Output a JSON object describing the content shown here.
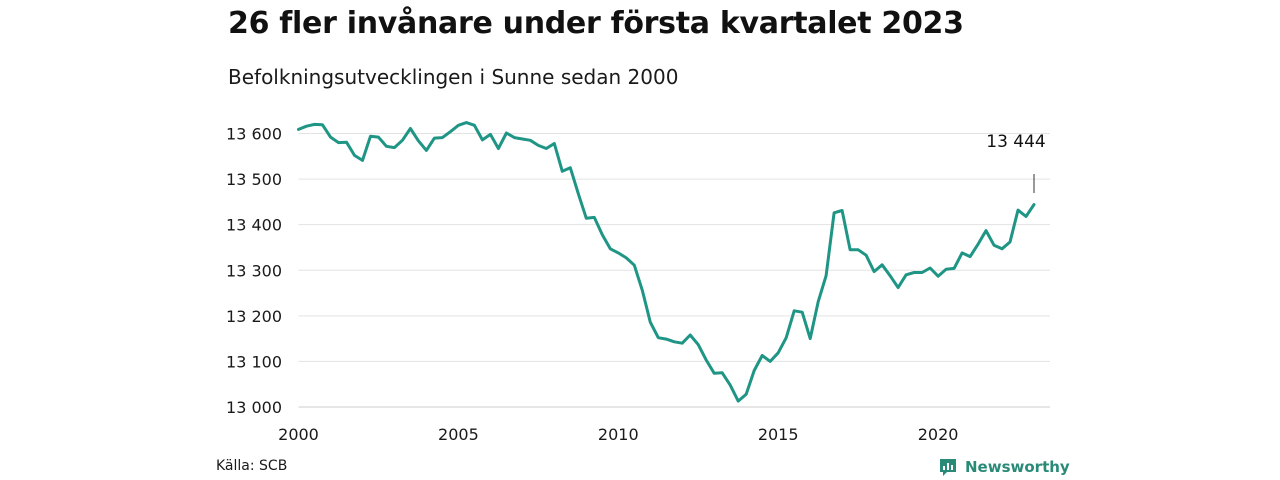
{
  "header": {
    "title": "26 fler invånare under första kvartalet 2023",
    "subtitle": "Befolkningsutvecklingen i Sunne sedan 2000"
  },
  "footer": {
    "source": "Källa: SCB",
    "brand": "Newsworthy"
  },
  "colors": {
    "line": "#1f9585",
    "grid": "#e3e3e3",
    "axis": "#cccccc",
    "brand": "#2a8a78"
  },
  "chart_data": {
    "type": "line",
    "title": "26 fler invånare under första kvartalet 2023",
    "subtitle": "Befolkningsutvecklingen i Sunne sedan 2000",
    "xlabel": "",
    "ylabel": "",
    "xlim": [
      2000,
      2023.5
    ],
    "ylim": [
      13000,
      13600
    ],
    "x_ticks": [
      2000,
      2005,
      2010,
      2015,
      2020
    ],
    "y_ticks": [
      13000,
      13100,
      13200,
      13300,
      13400,
      13500,
      13600
    ],
    "y_tick_labels": [
      "13 000",
      "13 100",
      "13 200",
      "13 300",
      "13 400",
      "13 500",
      "13 600"
    ],
    "grid": true,
    "annotation": {
      "x": 2023,
      "y": 13444,
      "label": "13 444"
    },
    "series": [
      {
        "x": [
          2000,
          2000.25,
          2000.5,
          2000.75,
          2001,
          2001.25,
          2001.5,
          2001.75,
          2002,
          2002.25,
          2002.5,
          2002.75,
          2003,
          2003.25,
          2003.5,
          2003.75,
          2004,
          2004.25,
          2004.5,
          2004.75,
          2005,
          2005.25,
          2005.5,
          2005.75,
          2006,
          2006.25,
          2006.5,
          2006.75,
          2007,
          2007.25,
          2007.5,
          2007.75,
          2008,
          2008.25,
          2008.5,
          2008.75,
          2009,
          2009.25,
          2009.5,
          2009.75,
          2010,
          2010.25,
          2010.5,
          2010.75,
          2011,
          2011.25,
          2011.5,
          2011.75,
          2012,
          2012.25,
          2012.5,
          2012.75,
          2013,
          2013.25,
          2013.5,
          2013.75,
          2014,
          2014.25,
          2014.5,
          2014.75,
          2015,
          2015.25,
          2015.5,
          2015.75,
          2016,
          2016.25,
          2016.5,
          2016.75,
          2017,
          2017.25,
          2017.5,
          2017.75,
          2018,
          2018.25,
          2018.5,
          2018.75,
          2019,
          2019.25,
          2019.5,
          2019.75,
          2020,
          2020.25,
          2020.5,
          2020.75,
          2021,
          2021.25,
          2021.5,
          2021.75,
          2022,
          2022.25,
          2022.5,
          2022.75,
          2023
        ],
        "values": [
          13609,
          13616,
          13620,
          13619,
          13592,
          13580,
          13581,
          13552,
          13541,
          13594,
          13592,
          13572,
          13569,
          13585,
          13611,
          13584,
          13563,
          13590,
          13591,
          13604,
          13618,
          13624,
          13618,
          13586,
          13598,
          13567,
          13601,
          13591,
          13588,
          13585,
          13574,
          13567,
          13578,
          13517,
          13525,
          13468,
          13414,
          13416,
          13378,
          13347,
          13338,
          13327,
          13311,
          13256,
          13186,
          13152,
          13149,
          13143,
          13140,
          13158,
          13137,
          13103,
          13074,
          13075,
          13048,
          13013,
          13028,
          13080,
          13113,
          13100,
          13119,
          13152,
          13211,
          13208,
          13150,
          13231,
          13288,
          13426,
          13431,
          13345,
          13345,
          13333,
          13297,
          13312,
          13288,
          13262,
          13290,
          13295,
          13295,
          13305,
          13287,
          13302,
          13304,
          13338,
          13330,
          13357,
          13387,
          13355,
          13347,
          13362,
          13432,
          13418,
          13444
        ]
      }
    ]
  }
}
